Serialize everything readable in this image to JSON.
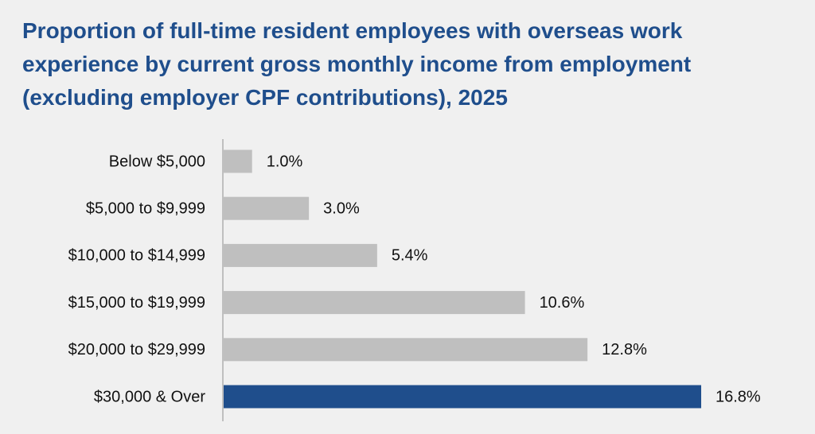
{
  "chart_data": {
    "type": "bar",
    "orientation": "horizontal",
    "title": "Proportion of full-time resident employees with overseas work experience by current gross monthly income from employment (excluding employer CPF contributions), 2025",
    "categories": [
      "Below $5,000",
      "$5,000 to $9,999",
      "$10,000 to $14,999",
      "$15,000 to $19,999",
      "$20,000 to $29,999",
      "$30,000 & Over"
    ],
    "values": [
      1.0,
      3.0,
      5.4,
      10.6,
      12.8,
      16.8
    ],
    "value_labels": [
      "1.0%",
      "3.0%",
      "5.4%",
      "10.6%",
      "12.8%",
      "16.8%"
    ],
    "colors": [
      "#bfbfbf",
      "#bfbfbf",
      "#bfbfbf",
      "#bfbfbf",
      "#bfbfbf",
      "#1f4e8c"
    ]
  }
}
